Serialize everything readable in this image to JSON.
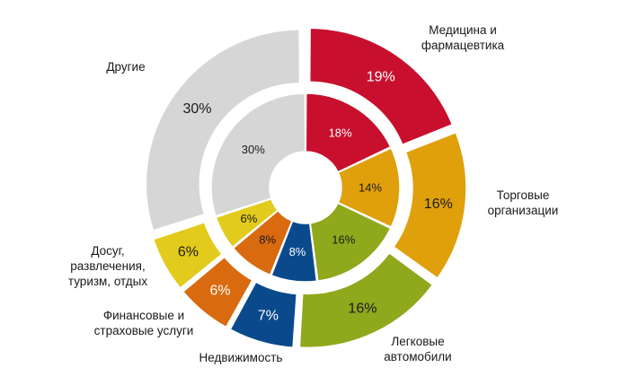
{
  "chart_data": {
    "type": "donut",
    "title": "",
    "categories": [
      "Медицина и фармацевтика",
      "Торговые организации",
      "Легковые автомобили",
      "Недвижимость",
      "Финансовые и страховые услуги",
      "Досуг, развлечения, туризм, отдых",
      "Другие"
    ],
    "category_lines": [
      [
        "Медицина и",
        "фармацевтика"
      ],
      [
        "Торговые",
        "организации"
      ],
      [
        "Легковые",
        "автомобили"
      ],
      [
        "Недвижимость"
      ],
      [
        "Финансовые и",
        "страховые услуги"
      ],
      [
        "Досуг,",
        "развлечения,",
        "туризм, отдых"
      ],
      [
        "Другие"
      ]
    ],
    "colors": [
      "#c8102e",
      "#e0a00c",
      "#8fa81c",
      "#0a4a8c",
      "#d96a10",
      "#e2cb1c",
      "#d6d6d6"
    ],
    "series": [
      {
        "ring": "outer",
        "values": [
          19,
          16,
          16,
          7,
          6,
          6,
          30
        ],
        "labels": [
          "19%",
          "16%",
          "16%",
          "7%",
          "6%",
          "6%",
          "30%"
        ]
      },
      {
        "ring": "inner",
        "values": [
          18,
          14,
          16,
          8,
          8,
          6,
          30
        ],
        "labels": [
          "18%",
          "14%",
          "16%",
          "8%",
          "8%",
          "6%",
          "30%"
        ]
      }
    ]
  }
}
